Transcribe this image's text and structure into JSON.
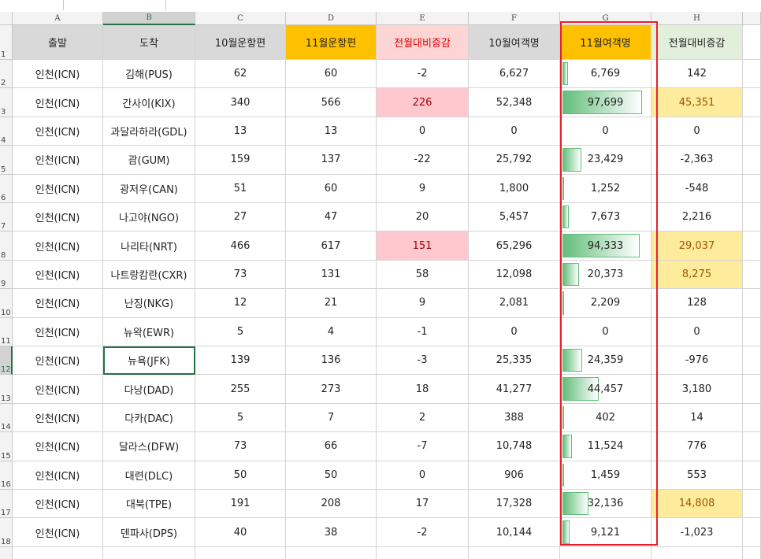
{
  "column_letters": [
    "A",
    "B",
    "C",
    "D",
    "E",
    "F",
    "G",
    "H"
  ],
  "row_numbers": [
    "1",
    "2",
    "3",
    "4",
    "5",
    "6",
    "7",
    "8",
    "9",
    "10",
    "11",
    "12",
    "13",
    "14",
    "15",
    "16",
    "17",
    "18"
  ],
  "table": {
    "header": [
      "출발",
      "도착",
      "10월운항편",
      "11월운항편",
      "전월대비증감",
      "10월여객명",
      "11월여객명",
      "전월대비증감"
    ],
    "rows": [
      [
        "인천(ICN)",
        "김해(PUS)",
        "62",
        "60",
        "-2",
        "6,627",
        "6,769",
        "142"
      ],
      [
        "인천(ICN)",
        "간사이(KIX)",
        "340",
        "566",
        "226",
        "52,348",
        "97,699",
        "45,351"
      ],
      [
        "인천(ICN)",
        "과달라하라(GDL)",
        "13",
        "13",
        "0",
        "0",
        "0",
        "0"
      ],
      [
        "인천(ICN)",
        "괌(GUM)",
        "159",
        "137",
        "-22",
        "25,792",
        "23,429",
        "-2,363"
      ],
      [
        "인천(ICN)",
        "광저우(CAN)",
        "51",
        "60",
        "9",
        "1,800",
        "1,252",
        "-548"
      ],
      [
        "인천(ICN)",
        "나고야(NGO)",
        "27",
        "47",
        "20",
        "5,457",
        "7,673",
        "2,216"
      ],
      [
        "인천(ICN)",
        "나리타(NRT)",
        "466",
        "617",
        "151",
        "65,296",
        "94,333",
        "29,037"
      ],
      [
        "인천(ICN)",
        "나트랑캄란(CXR)",
        "73",
        "131",
        "58",
        "12,098",
        "20,373",
        "8,275"
      ],
      [
        "인천(ICN)",
        "난징(NKG)",
        "12",
        "21",
        "9",
        "2,081",
        "2,209",
        "128"
      ],
      [
        "인천(ICN)",
        "뉴왁(EWR)",
        "5",
        "4",
        "-1",
        "0",
        "0",
        "0"
      ],
      [
        "인천(ICN)",
        "뉴욕(JFK)",
        "139",
        "136",
        "-3",
        "25,335",
        "24,359",
        "-976"
      ],
      [
        "인천(ICN)",
        "다낭(DAD)",
        "255",
        "273",
        "18",
        "41,277",
        "44,457",
        "3,180"
      ],
      [
        "인천(ICN)",
        "다카(DAC)",
        "5",
        "7",
        "2",
        "388",
        "402",
        "14"
      ],
      [
        "인천(ICN)",
        "달라스(DFW)",
        "73",
        "66",
        "-7",
        "10,748",
        "11,524",
        "776"
      ],
      [
        "인천(ICN)",
        "대련(DLC)",
        "50",
        "50",
        "0",
        "906",
        "1,459",
        "553"
      ],
      [
        "인천(ICN)",
        "대북(TPE)",
        "191",
        "208",
        "17",
        "17,328",
        "32,136",
        "14,808"
      ],
      [
        "인천(ICN)",
        "덴파사(DPS)",
        "40",
        "38",
        "-2",
        "10,144",
        "9,121",
        "-1,023"
      ]
    ]
  }
}
